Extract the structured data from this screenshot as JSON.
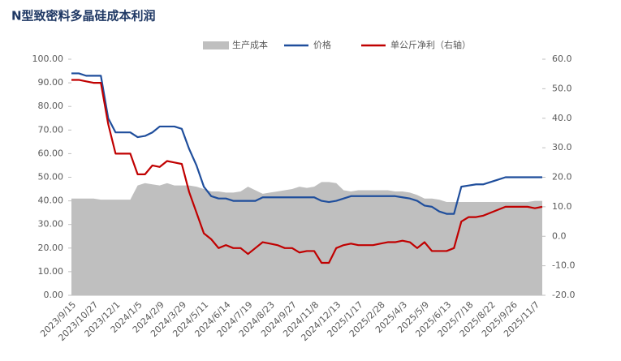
{
  "chart_data": {
    "type": "combo",
    "title": "N型致密料多晶硅成本利润",
    "categories": [
      "2023/9/15",
      null,
      null,
      "2023/10/27",
      null,
      null,
      "2023/12/1",
      null,
      null,
      "2024/1/5",
      null,
      null,
      "2024/2/9",
      null,
      null,
      "2024/3/29",
      null,
      null,
      "2024/5/11",
      null,
      null,
      "2024/6/14",
      null,
      null,
      "2024/7/19",
      null,
      null,
      "2024/8/23",
      null,
      null,
      "2024/9/27",
      null,
      null,
      "2024/11/8",
      null,
      null,
      "2024/12/13",
      null,
      null,
      "2025/1/17",
      null,
      null,
      "2025/2/28",
      null,
      null,
      "2025/4/3",
      null,
      null,
      "2025/5/9",
      null,
      null,
      "2025/6/13",
      null,
      null,
      "2025/7/18",
      null,
      null,
      "2025/8/22",
      null,
      null,
      "2025/9/26",
      null,
      null,
      "2025/11/7",
      null
    ],
    "series": [
      {
        "name": "生产成本",
        "kind": "area",
        "color": "#bfbfbf",
        "values": [
          41,
          41,
          41,
          41,
          40.5,
          40.5,
          40.5,
          40.5,
          40.5,
          46.5,
          47.5,
          47,
          46.5,
          47.5,
          46.5,
          46.5,
          46.5,
          46,
          45,
          44,
          44,
          43.5,
          43.5,
          44,
          46,
          44.5,
          43,
          43.5,
          44,
          44.5,
          45,
          46,
          45.5,
          46,
          48,
          48,
          47.5,
          44.5,
          44,
          44.5,
          44.5,
          44.5,
          44.5,
          44.5,
          44,
          44,
          43.5,
          42.5,
          41,
          41,
          40.5,
          39.5,
          39.5,
          39.5,
          39.5,
          39.5,
          39.5,
          39.5,
          39.5,
          39.5,
          39.5,
          39.5,
          39.5,
          40,
          40
        ]
      },
      {
        "name": "价格",
        "kind": "line",
        "color": "#1f4e9c",
        "values": [
          94,
          94,
          93,
          93,
          93,
          75,
          69,
          69,
          69,
          67,
          67.5,
          69,
          71.5,
          71.5,
          71.5,
          70.5,
          62,
          55,
          46,
          42,
          41,
          41,
          40,
          40,
          40,
          40,
          41.5,
          41.5,
          41.5,
          41.5,
          41.5,
          41.5,
          41.5,
          41.5,
          40,
          39.5,
          40,
          41,
          42,
          42,
          42,
          42,
          42,
          42,
          42,
          41.5,
          41,
          40,
          38,
          37.5,
          35.5,
          34.5,
          34.5,
          46,
          46.5,
          47,
          47,
          48,
          49,
          50,
          50,
          50,
          50,
          50,
          50
        ]
      },
      {
        "name": "单公斤净利（右轴）",
        "kind": "line",
        "axis": "y2",
        "color": "#c00000",
        "values": [
          53,
          53,
          52.5,
          52,
          52,
          38,
          28,
          28,
          28,
          21,
          21,
          24,
          23.5,
          25.5,
          25,
          24.5,
          15,
          8,
          1,
          -1,
          -4,
          -3,
          -4,
          -4,
          -6,
          -4,
          -2,
          -2.5,
          -3,
          -4,
          -4,
          -5.5,
          -5,
          -5,
          -9,
          -9,
          -4,
          -3,
          -2.5,
          -3,
          -3,
          -3,
          -2.5,
          -2,
          -2,
          -1.5,
          -2,
          -4,
          -2,
          -5,
          -5,
          -5,
          -4,
          5,
          6.5,
          6.5,
          7,
          8,
          9,
          10,
          10,
          10,
          10,
          9.5,
          10
        ]
      }
    ],
    "ylim": [
      0,
      100
    ],
    "yticks": [
      {
        "value": 0,
        "label": "0.00"
      },
      {
        "value": 10,
        "label": "10.00"
      },
      {
        "value": 20,
        "label": "20.00"
      },
      {
        "value": 30,
        "label": "30.00"
      },
      {
        "value": 40,
        "label": "40.00"
      },
      {
        "value": 50,
        "label": "50.00"
      },
      {
        "value": 60,
        "label": "60.00"
      },
      {
        "value": 70,
        "label": "70.00"
      },
      {
        "value": 80,
        "label": "80.00"
      },
      {
        "value": 90,
        "label": "90.00"
      },
      {
        "value": 100,
        "label": "100.00"
      }
    ],
    "y2lim": [
      -20,
      60
    ],
    "y2ticks": [
      {
        "value": -20,
        "label": "-20.0"
      },
      {
        "value": -10,
        "label": "-10.0"
      },
      {
        "value": 0,
        "label": "0.0"
      },
      {
        "value": 10,
        "label": "10.0"
      },
      {
        "value": 20,
        "label": "20.0"
      },
      {
        "value": 30,
        "label": "30.0"
      },
      {
        "value": 40,
        "label": "40.0"
      },
      {
        "value": 50,
        "label": "50.0"
      },
      {
        "value": 60,
        "label": "60.0"
      }
    ],
    "legend": "top"
  }
}
